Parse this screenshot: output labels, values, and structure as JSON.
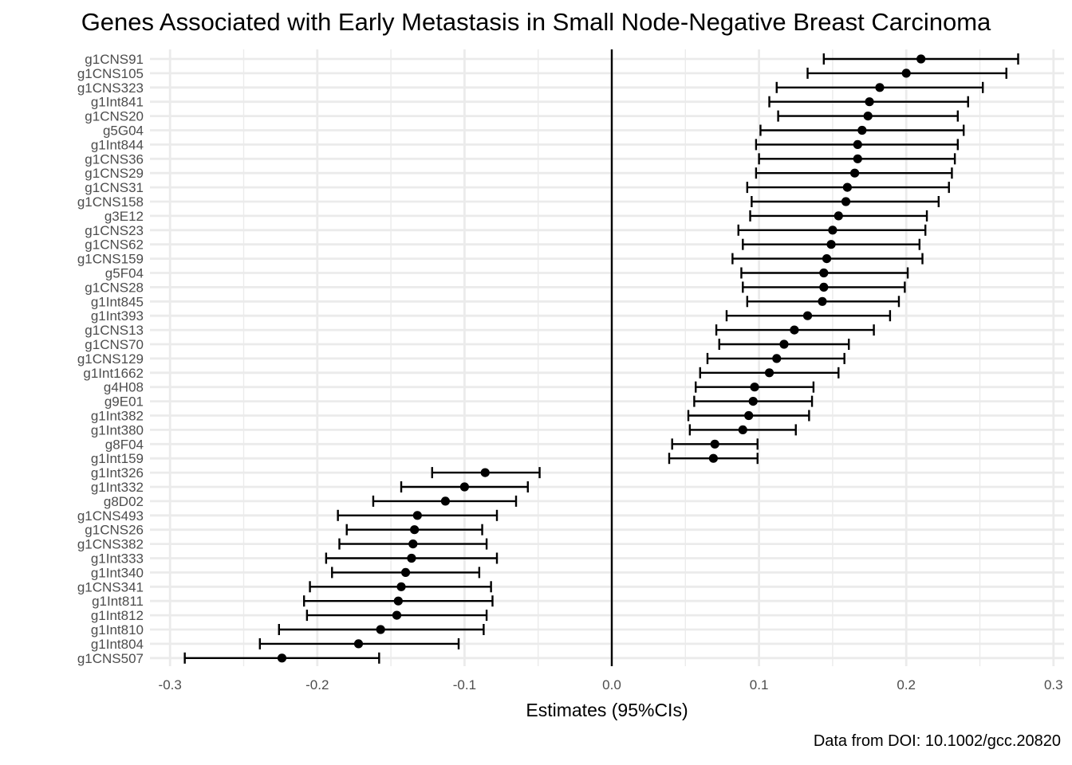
{
  "chart_data": {
    "type": "forest",
    "title": "Genes Associated with Early Metastasis in Small Node-Negative Breast Carcinoma",
    "xlabel": "Estimates (95%CIs)",
    "ylabel": "",
    "caption": "Data from DOI: 10.1002/gcc.20820",
    "xlim": [
      -0.3,
      0.3
    ],
    "xticks": [
      -0.3,
      -0.2,
      -0.1,
      0.0,
      0.1,
      0.2,
      0.3
    ],
    "xtick_labels": [
      "-0.3",
      "-0.2",
      "-0.1",
      "0.0",
      "0.1",
      "0.2",
      "0.3"
    ],
    "reference_line": 0,
    "grid": true,
    "rows": [
      {
        "label": "g1CNS91",
        "estimate": 0.21,
        "lower": 0.144,
        "upper": 0.276
      },
      {
        "label": "g1CNS105",
        "estimate": 0.2,
        "lower": 0.133,
        "upper": 0.268
      },
      {
        "label": "g1CNS323",
        "estimate": 0.182,
        "lower": 0.112,
        "upper": 0.252
      },
      {
        "label": "g1Int841",
        "estimate": 0.175,
        "lower": 0.107,
        "upper": 0.242
      },
      {
        "label": "g1CNS20",
        "estimate": 0.174,
        "lower": 0.113,
        "upper": 0.235
      },
      {
        "label": "g5G04",
        "estimate": 0.17,
        "lower": 0.101,
        "upper": 0.239
      },
      {
        "label": "g1Int844",
        "estimate": 0.167,
        "lower": 0.098,
        "upper": 0.235
      },
      {
        "label": "g1CNS36",
        "estimate": 0.167,
        "lower": 0.1,
        "upper": 0.233
      },
      {
        "label": "g1CNS29",
        "estimate": 0.165,
        "lower": 0.098,
        "upper": 0.231
      },
      {
        "label": "g1CNS31",
        "estimate": 0.16,
        "lower": 0.092,
        "upper": 0.229
      },
      {
        "label": "g1CNS158",
        "estimate": 0.159,
        "lower": 0.095,
        "upper": 0.222
      },
      {
        "label": "g3E12",
        "estimate": 0.154,
        "lower": 0.094,
        "upper": 0.214
      },
      {
        "label": "g1CNS23",
        "estimate": 0.15,
        "lower": 0.086,
        "upper": 0.213
      },
      {
        "label": "g1CNS62",
        "estimate": 0.149,
        "lower": 0.089,
        "upper": 0.209
      },
      {
        "label": "g1CNS159",
        "estimate": 0.146,
        "lower": 0.082,
        "upper": 0.211
      },
      {
        "label": "g5F04",
        "estimate": 0.144,
        "lower": 0.088,
        "upper": 0.201
      },
      {
        "label": "g1CNS28",
        "estimate": 0.144,
        "lower": 0.089,
        "upper": 0.199
      },
      {
        "label": "g1Int845",
        "estimate": 0.143,
        "lower": 0.092,
        "upper": 0.195
      },
      {
        "label": "g1Int393",
        "estimate": 0.133,
        "lower": 0.078,
        "upper": 0.189
      },
      {
        "label": "g1CNS13",
        "estimate": 0.124,
        "lower": 0.071,
        "upper": 0.178
      },
      {
        "label": "g1CNS70",
        "estimate": 0.117,
        "lower": 0.073,
        "upper": 0.161
      },
      {
        "label": "g1CNS129",
        "estimate": 0.112,
        "lower": 0.065,
        "upper": 0.158
      },
      {
        "label": "g1Int1662",
        "estimate": 0.107,
        "lower": 0.06,
        "upper": 0.154
      },
      {
        "label": "g4H08",
        "estimate": 0.097,
        "lower": 0.057,
        "upper": 0.137
      },
      {
        "label": "g9E01",
        "estimate": 0.096,
        "lower": 0.056,
        "upper": 0.136
      },
      {
        "label": "g1Int382",
        "estimate": 0.093,
        "lower": 0.052,
        "upper": 0.134
      },
      {
        "label": "g1Int380",
        "estimate": 0.089,
        "lower": 0.053,
        "upper": 0.125
      },
      {
        "label": "g8F04",
        "estimate": 0.07,
        "lower": 0.041,
        "upper": 0.099
      },
      {
        "label": "g1Int159",
        "estimate": 0.069,
        "lower": 0.039,
        "upper": 0.099
      },
      {
        "label": "g1Int326",
        "estimate": -0.086,
        "lower": -0.122,
        "upper": -0.049
      },
      {
        "label": "g1Int332",
        "estimate": -0.1,
        "lower": -0.143,
        "upper": -0.057
      },
      {
        "label": "g8D02",
        "estimate": -0.113,
        "lower": -0.162,
        "upper": -0.065
      },
      {
        "label": "g1CNS493",
        "estimate": -0.132,
        "lower": -0.186,
        "upper": -0.078
      },
      {
        "label": "g1CNS26",
        "estimate": -0.134,
        "lower": -0.18,
        "upper": -0.088
      },
      {
        "label": "g1CNS382",
        "estimate": -0.135,
        "lower": -0.185,
        "upper": -0.085
      },
      {
        "label": "g1Int333",
        "estimate": -0.136,
        "lower": -0.194,
        "upper": -0.078
      },
      {
        "label": "g1Int340",
        "estimate": -0.14,
        "lower": -0.19,
        "upper": -0.09
      },
      {
        "label": "g1CNS341",
        "estimate": -0.143,
        "lower": -0.205,
        "upper": -0.082
      },
      {
        "label": "g1Int811",
        "estimate": -0.145,
        "lower": -0.209,
        "upper": -0.081
      },
      {
        "label": "g1Int812",
        "estimate": -0.146,
        "lower": -0.207,
        "upper": -0.085
      },
      {
        "label": "g1Int810",
        "estimate": -0.157,
        "lower": -0.226,
        "upper": -0.087
      },
      {
        "label": "g1Int804",
        "estimate": -0.172,
        "lower": -0.239,
        "upper": -0.104
      },
      {
        "label": "g1CNS507",
        "estimate": -0.224,
        "lower": -0.29,
        "upper": -0.158
      }
    ],
    "colors": {
      "point": "#000000",
      "errorbar": "#000000",
      "grid": "#ebebeb",
      "reference": "#000000",
      "tick_text": "#4d4d4d"
    }
  }
}
